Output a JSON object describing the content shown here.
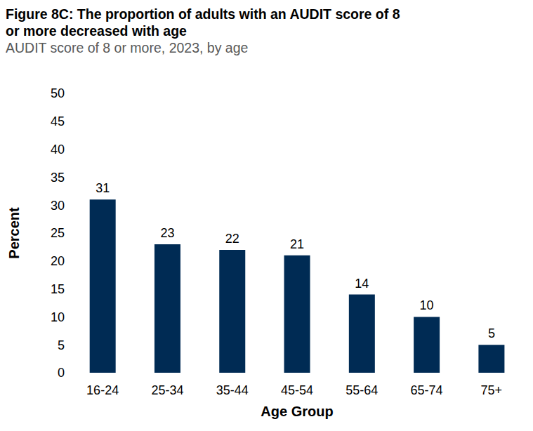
{
  "chart_data": {
    "type": "bar",
    "title": "Figure 8C: The proportion of adults with an AUDIT score of 8 or more decreased with age",
    "subtitle": "AUDIT score of 8 or more, 2023, by age",
    "x_label": "Age Group",
    "y_label": "Percent",
    "categories": [
      "16-24",
      "25-34",
      "35-44",
      "45-54",
      "55-64",
      "65-74",
      "75+"
    ],
    "values": [
      31,
      23,
      22,
      21,
      14,
      10,
      5
    ],
    "color": "#002b54",
    "ylim": [
      0,
      50
    ],
    "yticks": [
      0,
      5,
      10,
      15,
      20,
      25,
      30,
      35,
      40,
      45,
      50
    ],
    "grid": false,
    "data_labels": true
  }
}
